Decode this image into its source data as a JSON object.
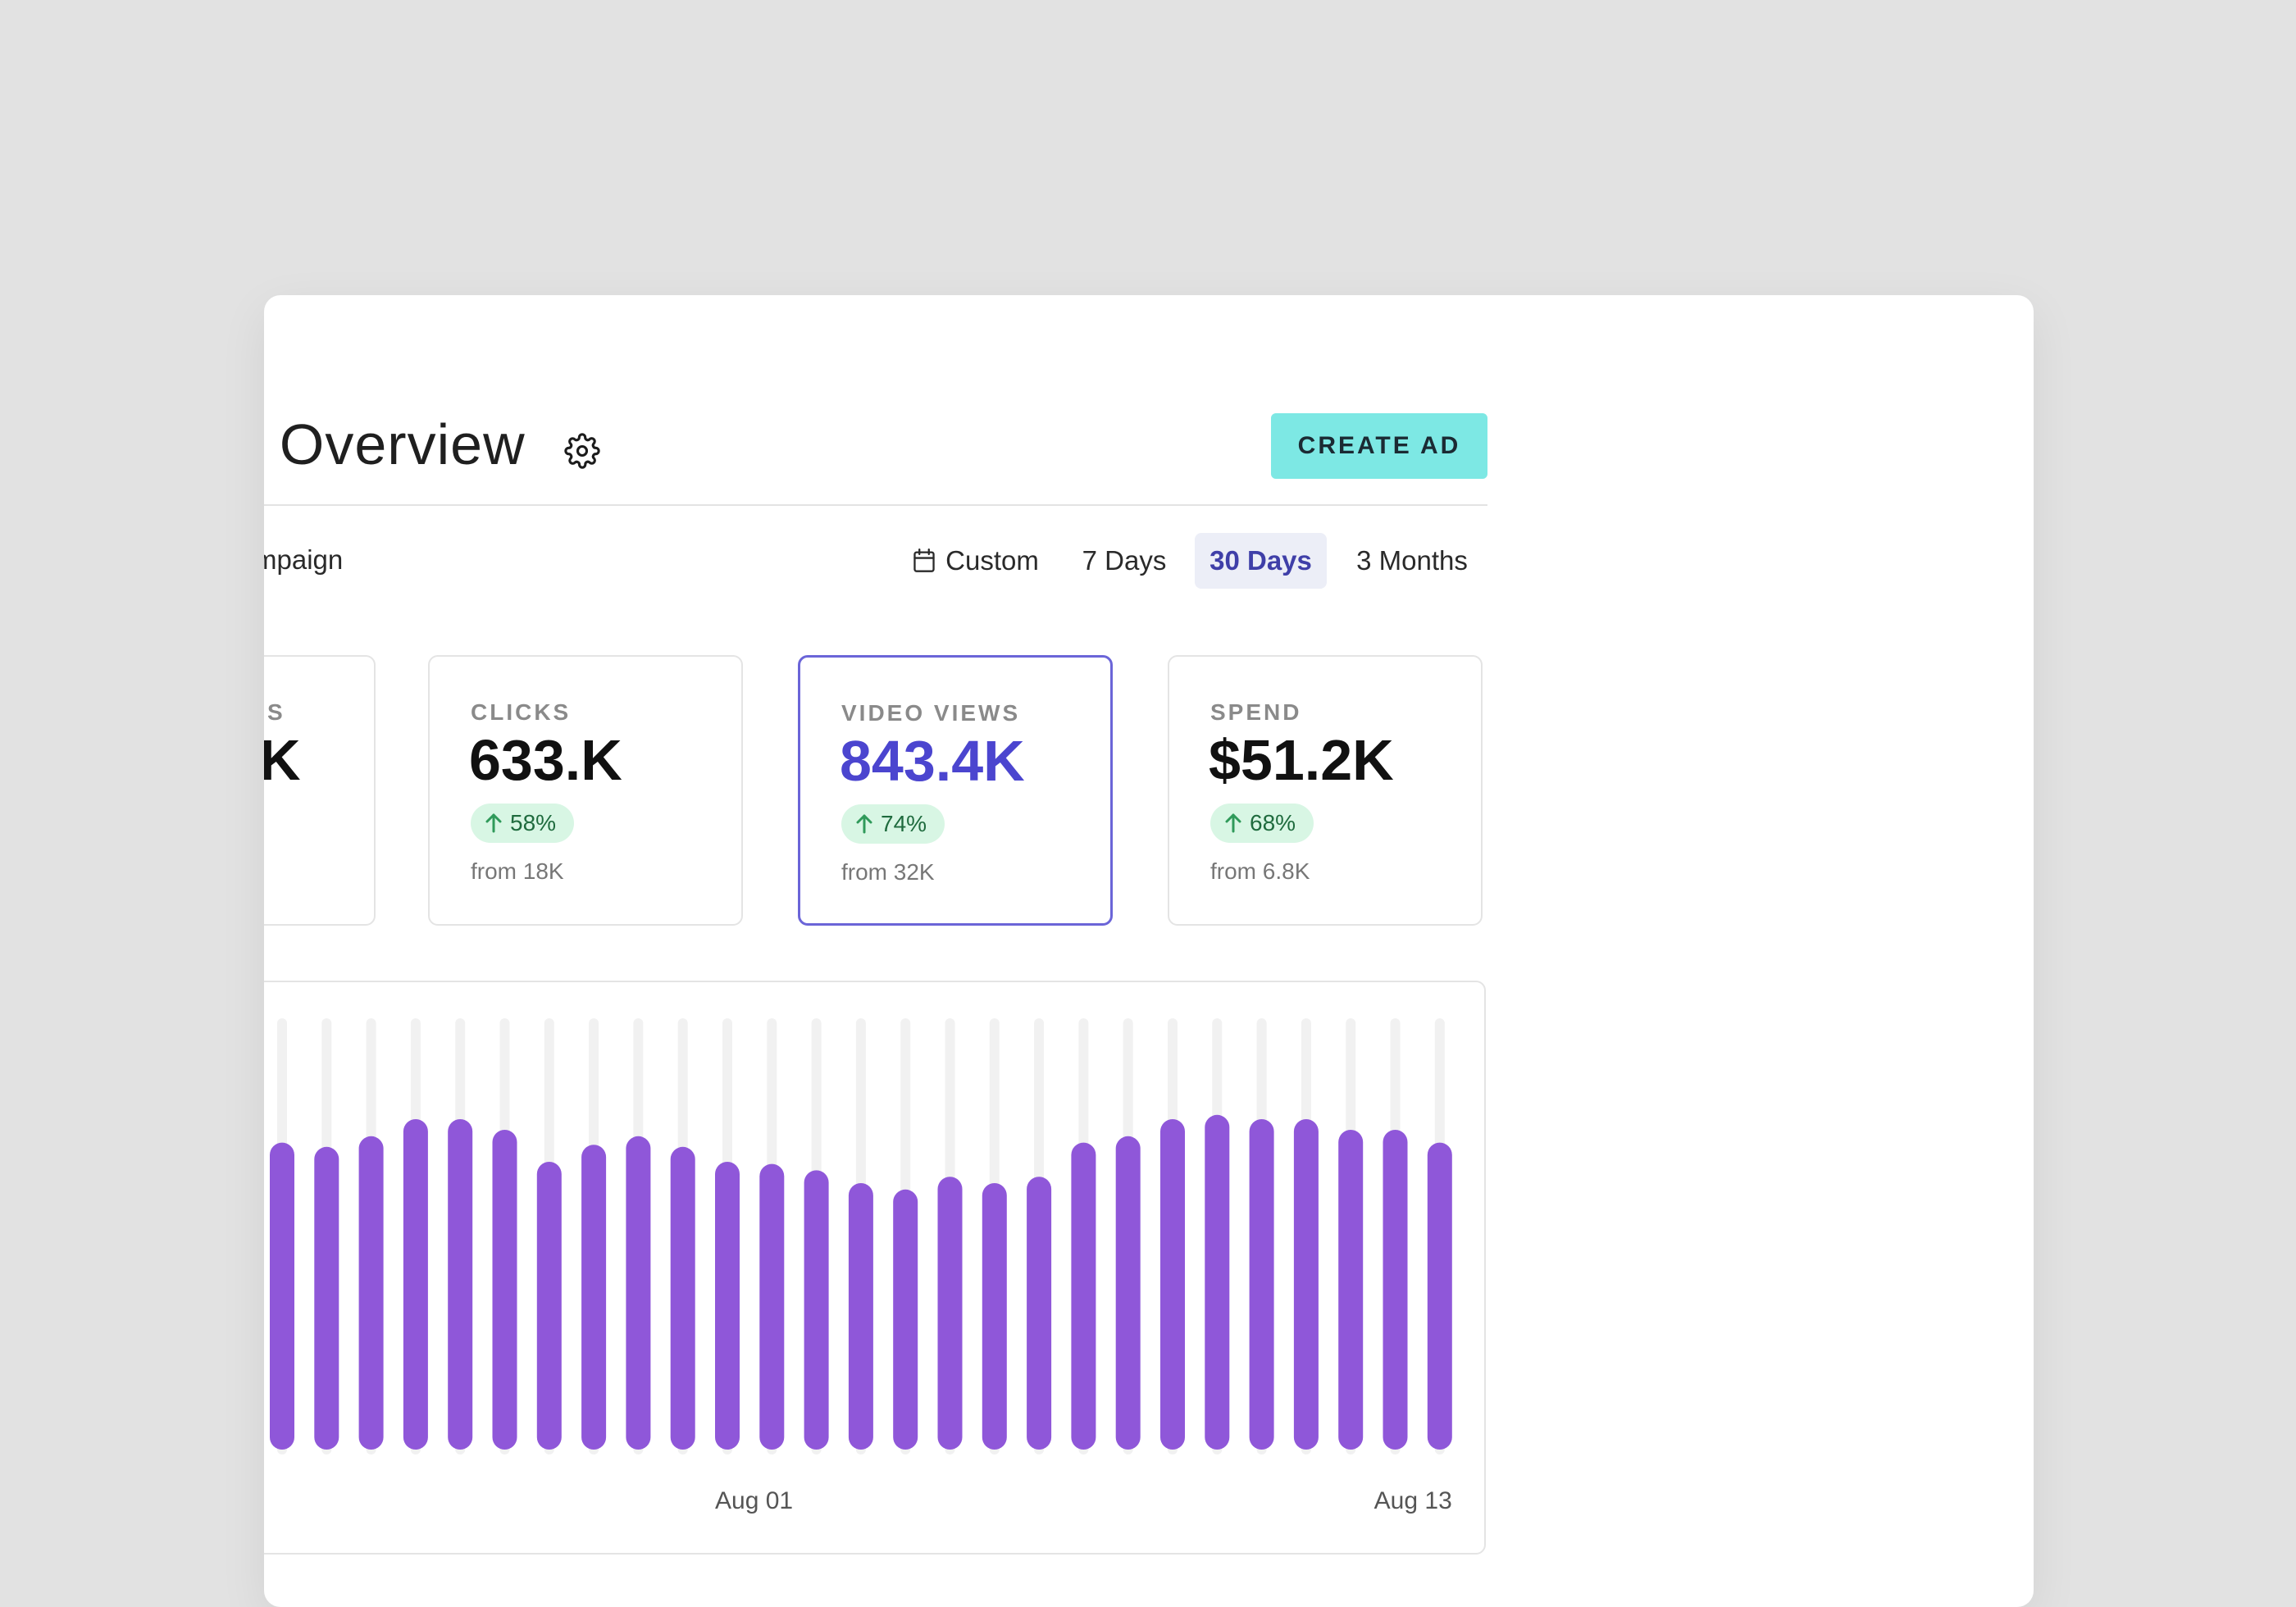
{
  "header": {
    "title": "t Overview",
    "settings_icon": "gear-icon",
    "create_button_label": "CREATE AD",
    "create_button_color": "#7de8e4"
  },
  "filters": {
    "campaign_label": "mpaign",
    "ranges": [
      {
        "label": "Custom",
        "icon": "calendar-icon",
        "active": false
      },
      {
        "label": "7 Days",
        "active": false
      },
      {
        "label": "30 Days",
        "active": true
      },
      {
        "label": "3 Months",
        "active": false
      }
    ]
  },
  "stats": [
    {
      "label": "S",
      "value": "K",
      "clipped": true
    },
    {
      "label": "CLICKS",
      "value": "633.K",
      "change": "58%",
      "from": "from 18K",
      "selected": false
    },
    {
      "label": "VIDEO VIEWS",
      "value": "843.4K",
      "change": "74%",
      "from": "from 32K",
      "selected": true
    },
    {
      "label": "SPEND",
      "value": "$51.2K",
      "change": "68%",
      "from": "from 6.8K",
      "selected": false
    }
  ],
  "colors": {
    "accent": "#4b45cf",
    "bar": "#8f57d9",
    "bar_track": "#f1f1f1",
    "badge_bg": "#d8f6e4",
    "badge_text": "#1f6b3e"
  },
  "chart_data": {
    "type": "bar",
    "x_tick_labels": [
      "Aug 01",
      "Aug 13"
    ],
    "values": [
      0.72,
      0.71,
      0.735,
      0.775,
      0.775,
      0.75,
      0.675,
      0.715,
      0.735,
      0.71,
      0.675,
      0.67,
      0.655,
      0.625,
      0.61,
      0.64,
      0.625,
      0.64,
      0.72,
      0.735,
      0.775,
      0.785,
      0.775,
      0.775,
      0.75,
      0.75,
      0.72
    ],
    "ylim": [
      0,
      1
    ],
    "grid": false,
    "legend": "none"
  }
}
